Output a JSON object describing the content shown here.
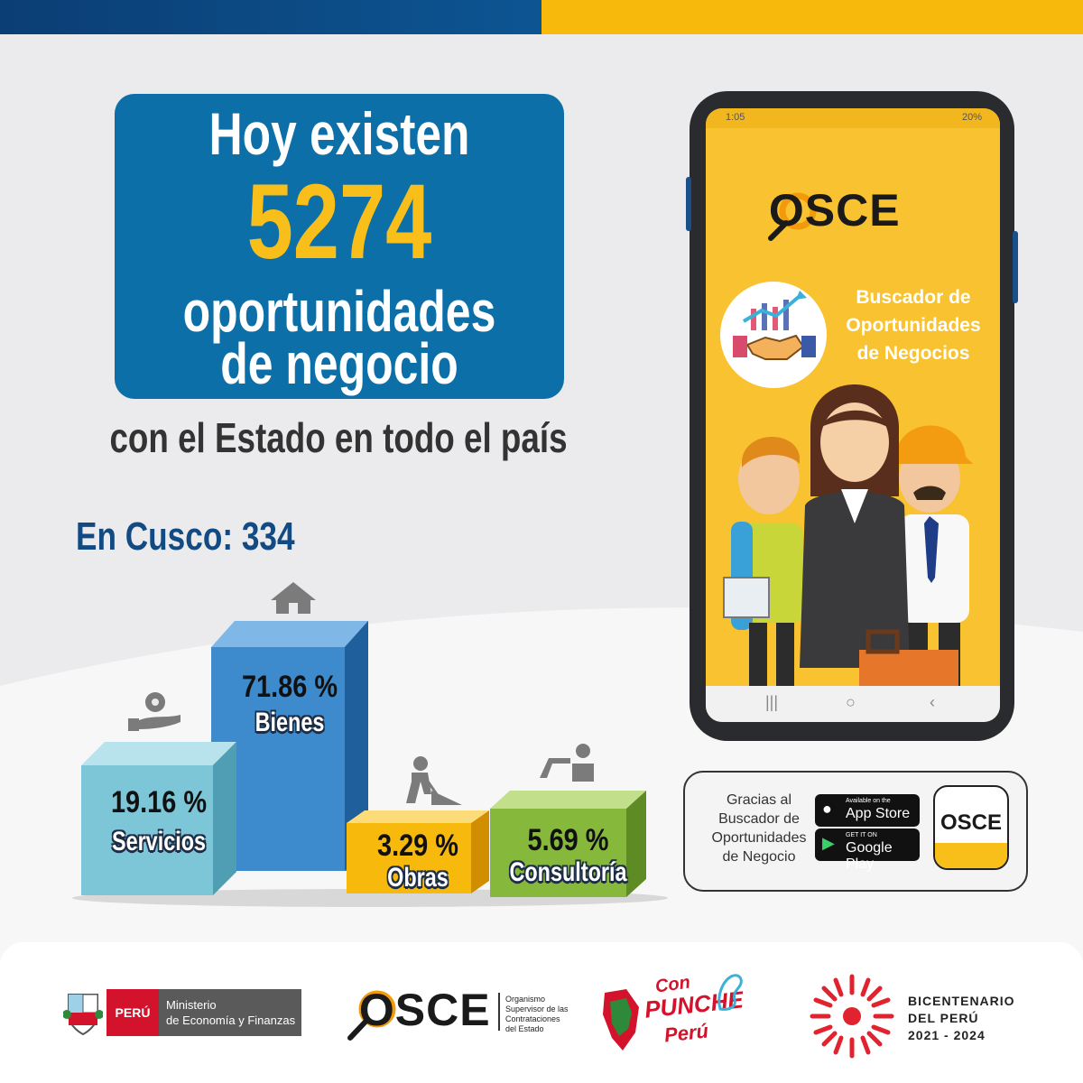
{
  "hero": {
    "title": "Hoy existen",
    "number": "5274",
    "line2": "oportunidades",
    "line3": "de negocio"
  },
  "subtitle": "con el Estado en todo el país",
  "region": {
    "label": "En Cusco:",
    "value": "334"
  },
  "bars": [
    {
      "value": "19.16 %",
      "label": "Servicios",
      "icon": "hand-gear-icon",
      "color": "#7dc6d8"
    },
    {
      "value": "71.86 %",
      "label": "Bienes",
      "icon": "house-icon",
      "color": "#3a86c8"
    },
    {
      "value": "3.29 %",
      "label": "Obras",
      "icon": "worker-digging-icon",
      "color": "#f6b90c"
    },
    {
      "value": "5.69 %",
      "label": "Consultoría",
      "icon": "consultant-icon",
      "color": "#86b83c"
    }
  ],
  "phone": {
    "status_time": "1:05",
    "status_battery": "20%",
    "logo": "OSCE",
    "app_name_lines": [
      "Buscador de",
      "Oportunidades",
      "de Negocios"
    ]
  },
  "download": {
    "text_lines": [
      "Gracias al",
      "Buscador de",
      "Oportunidades",
      "de Negocio"
    ],
    "appstore_small": "Available on the",
    "appstore_big": "App Store",
    "googleplay_small": "GET IT ON",
    "googleplay_big": "Google Play",
    "app_icon_text": "OSCE"
  },
  "footer": {
    "peru": "PERÚ",
    "ministry_lines": [
      "Ministerio",
      "de Economía y Finanzas"
    ],
    "osce": "OSCE",
    "osce_sub_lines": [
      "Organismo",
      "Supervisor de las",
      "Contrataciones",
      "del Estado"
    ],
    "punche_con": "Con",
    "punche_main": "PUNCHE",
    "punche_peru": "Perú",
    "bicentenario_lines": [
      "BICENTENARIO",
      "DEL PERÚ",
      "2021 - 2024"
    ]
  },
  "colors": {
    "brand_blue": "#0c6fa8",
    "brand_yellow": "#f8be19",
    "dark_blue": "#124b84"
  }
}
